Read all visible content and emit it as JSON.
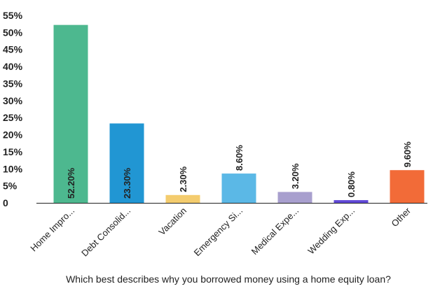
{
  "chart_data": {
    "type": "bar",
    "categories": [
      "Home Impro...",
      "Debt Consolid...",
      "Vacation",
      "Emergency Si...",
      "Medical Expe...",
      "Wedding Exp...",
      "Other"
    ],
    "values": [
      52.2,
      23.3,
      2.3,
      8.6,
      3.2,
      0.8,
      9.6
    ],
    "data_labels": [
      "52.20%",
      "23.30%",
      "2.30%",
      "8.60%",
      "3.20%",
      "0.80%",
      "9.60%"
    ],
    "colors": [
      "#4db88f",
      "#2196d3",
      "#f4cc6e",
      "#5bb8e6",
      "#a89fce",
      "#6048d6",
      "#f26b38"
    ],
    "y_ticks": [
      0,
      5,
      10,
      15,
      20,
      25,
      30,
      35,
      40,
      45,
      50,
      55
    ],
    "y_tick_labels": [
      "0",
      "5%",
      "10%",
      "15%",
      "20%",
      "25%",
      "30%",
      "35%",
      "40%",
      "45%",
      "50%",
      "55%"
    ],
    "ylim": [
      0,
      55
    ],
    "xlabel": "Which best describes why you borrowed money using a home equity loan?",
    "ylabel": "",
    "title": "",
    "grid": false,
    "legend": "none"
  }
}
